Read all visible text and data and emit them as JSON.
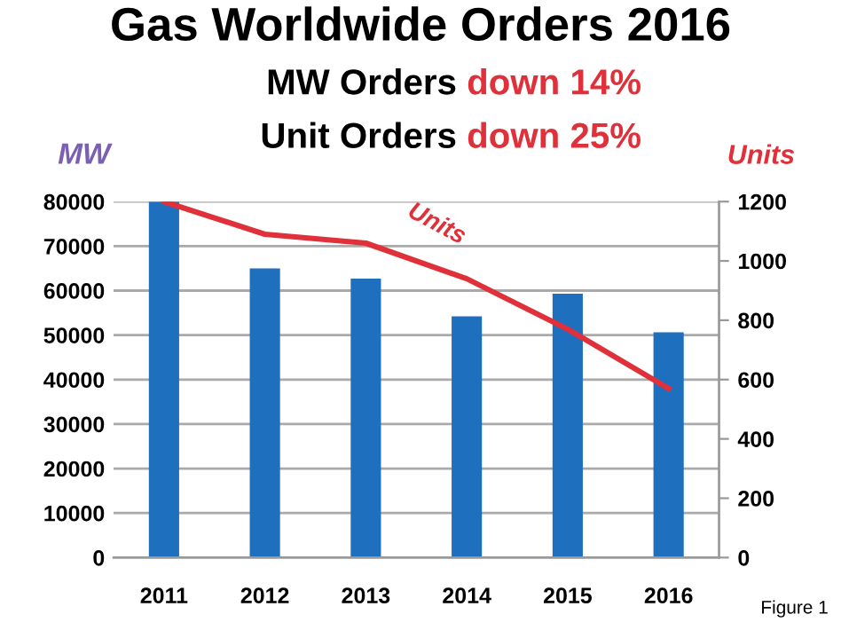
{
  "chart_data": {
    "type": "bar",
    "title": "Gas Worldwide Orders 2016",
    "categories": [
      "2011",
      "2012",
      "2013",
      "2014",
      "2015",
      "2016"
    ],
    "series": [
      {
        "color": "#1f6fbf",
        "values": [
          80000,
          65000,
          62700,
          54200,
          59300,
          50600
        ]
      },
      {
        "type": "line",
        "axis": "y2",
        "name": "Units",
        "color": "#e0303a",
        "values": [
          1200,
          1090,
          1060,
          940,
          770,
          570
        ]
      }
    ],
    "ylabel": "MW",
    "y2label": "Units",
    "ylim": [
      0,
      80000
    ],
    "yticks": [
      0,
      10000,
      20000,
      30000,
      40000,
      50000,
      60000,
      70000,
      80000
    ],
    "y2lim": [
      0,
      1200
    ],
    "y2ticks": [
      0,
      200,
      400,
      600,
      800,
      1000,
      1200
    ],
    "grid": "y",
    "legend": false,
    "marker": "none",
    "annotations": [
      "MW Orders",
      "down 14%",
      "Unit Orders",
      "down 25%",
      "Figure 1"
    ]
  }
}
